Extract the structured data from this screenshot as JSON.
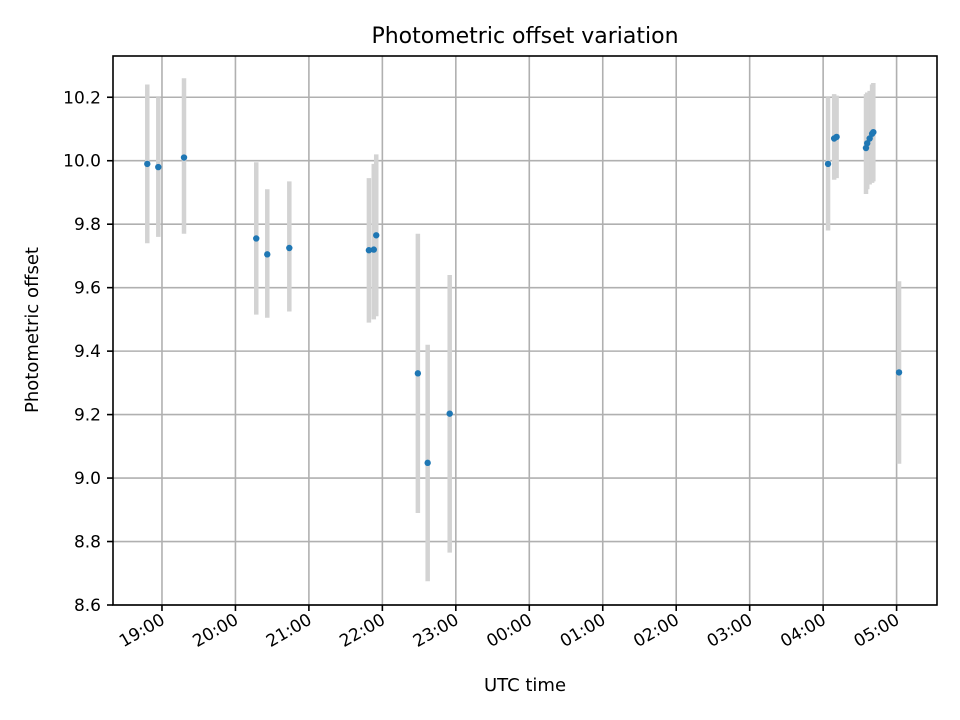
{
  "chart_data": {
    "type": "scatter",
    "title": "Photometric offset variation",
    "xlabel": "UTC time",
    "ylabel": "Photometric offset",
    "x_is_time": true,
    "x_time_origin": "18:00",
    "xlim": [
      "18:20",
      "05:33 (next day)"
    ],
    "ylim": [
      8.6,
      10.33
    ],
    "yticks": [
      8.6,
      8.8,
      9.0,
      9.2,
      9.4,
      9.6,
      9.8,
      10.0,
      10.2
    ],
    "xticks": [
      "19:00",
      "20:00",
      "21:00",
      "22:00",
      "23:00",
      "00:00",
      "01:00",
      "02:00",
      "03:00",
      "04:00",
      "05:00"
    ],
    "grid": true,
    "marker_color": "#1f77b4",
    "errorbar_color": "#d3d3d3",
    "points": [
      {
        "t": "18:48",
        "y": 9.99,
        "lo": 9.74,
        "hi": 10.24
      },
      {
        "t": "18:57",
        "y": 9.98,
        "lo": 9.76,
        "hi": 10.2
      },
      {
        "t": "19:18",
        "y": 10.01,
        "lo": 9.77,
        "hi": 10.26
      },
      {
        "t": "20:17",
        "y": 9.755,
        "lo": 9.515,
        "hi": 9.995
      },
      {
        "t": "20:26",
        "y": 9.705,
        "lo": 9.505,
        "hi": 9.91
      },
      {
        "t": "20:44",
        "y": 9.725,
        "lo": 9.525,
        "hi": 9.935
      },
      {
        "t": "21:49",
        "y": 9.718,
        "lo": 9.49,
        "hi": 9.945
      },
      {
        "t": "21:53",
        "y": 9.72,
        "lo": 9.5,
        "hi": 9.99
      },
      {
        "t": "21:55",
        "y": 9.765,
        "lo": 9.51,
        "hi": 10.02
      },
      {
        "t": "22:29",
        "y": 9.33,
        "lo": 8.89,
        "hi": 9.77
      },
      {
        "t": "22:37",
        "y": 9.048,
        "lo": 8.675,
        "hi": 9.42
      },
      {
        "t": "22:55",
        "y": 9.203,
        "lo": 8.765,
        "hi": 9.64
      },
      {
        "t": "04:04",
        "y": 9.99,
        "lo": 9.78,
        "hi": 10.2
      },
      {
        "t": "04:09",
        "y": 10.07,
        "lo": 9.94,
        "hi": 10.21
      },
      {
        "t": "04:11",
        "y": 10.075,
        "lo": 9.945,
        "hi": 10.205
      },
      {
        "t": "04:35",
        "y": 10.04,
        "lo": 9.895,
        "hi": 10.21
      },
      {
        "t": "04:36",
        "y": 10.055,
        "lo": 9.91,
        "hi": 10.215
      },
      {
        "t": "04:38",
        "y": 10.07,
        "lo": 9.925,
        "hi": 10.22
      },
      {
        "t": "04:40",
        "y": 10.085,
        "lo": 9.93,
        "hi": 10.24
      },
      {
        "t": "04:41",
        "y": 10.09,
        "lo": 9.935,
        "hi": 10.245
      },
      {
        "t": "05:02",
        "y": 9.333,
        "lo": 9.045,
        "hi": 9.62
      }
    ]
  }
}
